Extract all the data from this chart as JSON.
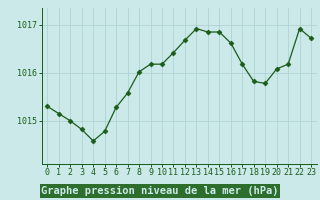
{
  "x": [
    0,
    1,
    2,
    3,
    4,
    5,
    6,
    7,
    8,
    9,
    10,
    11,
    12,
    13,
    14,
    15,
    16,
    17,
    18,
    19,
    20,
    21,
    22,
    23
  ],
  "y": [
    1015.3,
    1015.15,
    1015.0,
    1014.82,
    1014.58,
    1014.78,
    1015.28,
    1015.58,
    1016.02,
    1016.18,
    1016.18,
    1016.42,
    1016.68,
    1016.92,
    1016.85,
    1016.85,
    1016.62,
    1016.18,
    1015.82,
    1015.78,
    1016.08,
    1016.18,
    1016.92,
    1016.72
  ],
  "line_color": "#1a5c1a",
  "marker": "D",
  "marker_size": 2.5,
  "bg_color": "#cce9e9",
  "grid_color": "#aacfcf",
  "xlabel": "Graphe pression niveau de la mer (hPa)",
  "xlabel_fontsize": 7.5,
  "tick_fontsize": 6,
  "ytick_labels": [
    "1015",
    "1016",
    "1017"
  ],
  "yticks": [
    1015,
    1016,
    1017
  ],
  "ylim": [
    1014.1,
    1017.35
  ],
  "xlim": [
    -0.5,
    23.5
  ],
  "xlabel_bg": "#2d6e2d",
  "xlabel_fg": "#cce9e9"
}
